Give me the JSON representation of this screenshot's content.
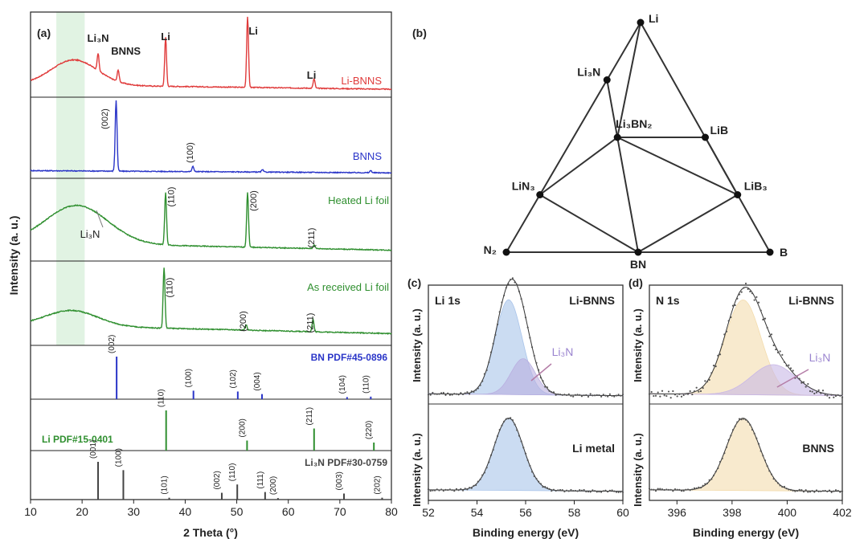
{
  "chart_data": [
    {
      "panel": "(a)",
      "type": "line",
      "xlabel": "2 Theta (°)",
      "ylabel": "Intensity (a. u.)",
      "xlim": [
        10,
        80
      ],
      "xticks": [
        10,
        20,
        30,
        40,
        50,
        60,
        70,
        80
      ],
      "highlight_band": [
        15,
        20.5
      ],
      "series": [
        {
          "name": "Li-BNNS",
          "color": "#e03b3b",
          "base": 0.12,
          "hump": {
            "center": 18.5,
            "height": 0.32,
            "width": 4.5
          },
          "peaks": [
            {
              "x": 23.1,
              "h": 0.22
            },
            {
              "x": 27.0,
              "h": 0.15
            },
            {
              "x": 36.2,
              "h": 0.62
            },
            {
              "x": 52.1,
              "h": 0.9
            },
            {
              "x": 65.0,
              "h": 0.12
            }
          ],
          "labels": [
            {
              "text": "Li₃N",
              "x": 23.1
            },
            {
              "text": "BNNS",
              "x": 28.5
            },
            {
              "text": "Li",
              "x": 36.2
            },
            {
              "text": "Li",
              "x": 53.2
            },
            {
              "text": "Li",
              "x": 64.5
            }
          ]
        },
        {
          "name": "BNNS",
          "color": "#2a35c8",
          "base": 0.06,
          "hump": null,
          "peaks": [
            {
              "x": 26.6,
              "h": 0.95
            },
            {
              "x": 41.5,
              "h": 0.07
            },
            {
              "x": 55.0,
              "h": 0.03
            },
            {
              "x": 76.0,
              "h": 0.03
            }
          ],
          "labels": [
            {
              "text": "(002)",
              "x": 25.0
            },
            {
              "text": "(100)",
              "x": 41.5
            }
          ]
        },
        {
          "name": "Heated Li foil",
          "color": "#2f8f2f",
          "base": 0.2,
          "hump": {
            "center": 19.0,
            "height": 0.5,
            "width": 6
          },
          "peaks": [
            {
              "x": 36.2,
              "h": 0.68
            },
            {
              "x": 52.1,
              "h": 0.72
            },
            {
              "x": 65.0,
              "h": 0.05
            }
          ],
          "labels": [
            {
              "text": "(110)",
              "x": 37.8
            },
            {
              "text": "(200)",
              "x": 53.8
            },
            {
              "text": "(211)",
              "x": 65.0
            },
            {
              "text": "Li₃N",
              "x": 22.0
            }
          ]
        },
        {
          "name": "As received Li foil",
          "color": "#2f8f2f",
          "base": 0.22,
          "hump": {
            "center": 18.0,
            "height": 0.2,
            "width": 5
          },
          "peaks": [
            {
              "x": 35.9,
              "h": 0.78
            },
            {
              "x": 51.8,
              "h": 0.07
            },
            {
              "x": 64.8,
              "h": 0.16
            }
          ],
          "labels": [
            {
              "text": "(110)",
              "x": 37.5
            },
            {
              "text": "(200)",
              "x": 51.8
            },
            {
              "text": "(211)",
              "x": 64.8
            }
          ]
        }
      ],
      "reference_patterns": [
        {
          "name": "BN PDF#45-0896",
          "color": "#2a35c8",
          "lines": [
            {
              "x": 26.7,
              "h": 1.0,
              "label": "(002)"
            },
            {
              "x": 41.6,
              "h": 0.2,
              "label": "(100)"
            },
            {
              "x": 50.2,
              "h": 0.18,
              "label": "(102)"
            },
            {
              "x": 54.9,
              "h": 0.12,
              "label": "(004)"
            },
            {
              "x": 71.4,
              "h": 0.05,
              "label": "(104)"
            },
            {
              "x": 76.0,
              "h": 0.06,
              "label": "(110)"
            }
          ]
        },
        {
          "name": "Li PDF#15-0401",
          "color": "#2f8f2f",
          "lines": [
            {
              "x": 36.3,
              "h": 1.0,
              "label": "(110)"
            },
            {
              "x": 52.0,
              "h": 0.25,
              "label": "(200)"
            },
            {
              "x": 65.0,
              "h": 0.55,
              "label": "(211)"
            },
            {
              "x": 76.6,
              "h": 0.2,
              "label": "(220)"
            }
          ]
        },
        {
          "name": "Li₃N PDF#30-0759",
          "color": "#444444",
          "lines": [
            {
              "x": 23.1,
              "h": 1.0,
              "label": "(001)"
            },
            {
              "x": 28.0,
              "h": 0.78,
              "label": "(100)"
            },
            {
              "x": 36.9,
              "h": 0.05,
              "label": "(101)"
            },
            {
              "x": 47.1,
              "h": 0.18,
              "label": "(002)"
            },
            {
              "x": 50.1,
              "h": 0.4,
              "label": "(110)"
            },
            {
              "x": 55.5,
              "h": 0.2,
              "label": "(111)"
            },
            {
              "x": 58.0,
              "h": 0.04,
              "label": "(200)"
            },
            {
              "x": 70.8,
              "h": 0.16,
              "label": "(003)"
            },
            {
              "x": 78.2,
              "h": 0.05,
              "label": "(202)"
            }
          ]
        }
      ]
    },
    {
      "panel": "(b)",
      "type": "ternary_phase_diagram",
      "vertices": [
        "Li",
        "N₂",
        "B"
      ],
      "points": [
        {
          "name": "Li",
          "a": 1.0,
          "b": 0.0
        },
        {
          "name": "N₂",
          "a": 0.0,
          "b": 0.0
        },
        {
          "name": "B",
          "a": 0.0,
          "b": 1.0
        },
        {
          "name": "Li₃N",
          "a": 0.75,
          "b": 0.0
        },
        {
          "name": "Li₃BN₂",
          "a": 0.5,
          "b": 0.1667
        },
        {
          "name": "LiB",
          "a": 0.5,
          "b": 0.5
        },
        {
          "name": "LiN₃",
          "a": 0.25,
          "b": 0.0
        },
        {
          "name": "LiB₃",
          "a": 0.25,
          "b": 0.75
        },
        {
          "name": "BN",
          "a": 0.0,
          "b": 0.5
        }
      ],
      "tie_lines": [
        [
          "Li",
          "N₂"
        ],
        [
          "N₂",
          "B"
        ],
        [
          "B",
          "Li"
        ],
        [
          "Li",
          "Li₃BN₂"
        ],
        [
          "Li₃N",
          "Li₃BN₂"
        ],
        [
          "Li₃BN₂",
          "LiB"
        ],
        [
          "Li₃BN₂",
          "LiN₃"
        ],
        [
          "Li₃BN₂",
          "BN"
        ],
        [
          "Li₃BN₂",
          "LiB₃"
        ],
        [
          "LiN₃",
          "BN"
        ],
        [
          "LiB₃",
          "BN"
        ],
        [
          "LiB",
          "LiB₃"
        ]
      ]
    },
    {
      "panel": "(c)",
      "type": "line",
      "title": "Li 1s",
      "xlabel": "Binding energy (eV)",
      "ylabel": "Intensity (a. u.)",
      "xlim": [
        52,
        60
      ],
      "xticks": [
        52,
        54,
        56,
        58,
        60
      ],
      "spectra": [
        {
          "name": "Li-BNNS",
          "peaks": [
            {
              "center": 55.3,
              "sigma": 0.55,
              "amp": 1.0,
              "color": "#a9c4ea"
            },
            {
              "center": 55.9,
              "sigma": 0.5,
              "amp": 0.38,
              "color": "#b9afe0"
            }
          ],
          "annotation": "Li₃N"
        },
        {
          "name": "Li metal",
          "peaks": [
            {
              "center": 55.3,
              "sigma": 0.6,
              "amp": 1.0,
              "color": "#a9c4ea"
            }
          ]
        }
      ]
    },
    {
      "panel": "(d)",
      "type": "line",
      "title": "N 1s",
      "xlabel": "Binding energy (eV)",
      "ylabel": "Intensity (a. u.)",
      "xlim": [
        395,
        402
      ],
      "xticks": [
        396,
        398,
        400,
        402
      ],
      "spectra": [
        {
          "name": "Li-BNNS",
          "peaks": [
            {
              "center": 398.4,
              "sigma": 0.65,
              "amp": 1.0,
              "color": "#f3dcae"
            },
            {
              "center": 399.5,
              "sigma": 0.8,
              "amp": 0.32,
              "color": "#c8b7e6"
            }
          ],
          "annotation": "Li₃N"
        },
        {
          "name": "BNNS",
          "peaks": [
            {
              "center": 398.4,
              "sigma": 0.6,
              "amp": 1.0,
              "color": "#f3dcae"
            }
          ]
        }
      ]
    }
  ]
}
